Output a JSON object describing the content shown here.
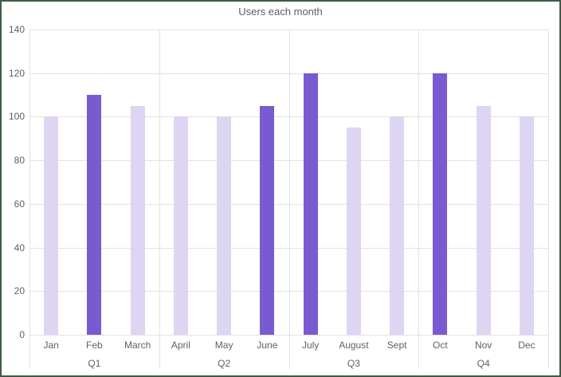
{
  "frame": {
    "border_color": "#3d5c45",
    "background": "#ffffff"
  },
  "chart_data": {
    "type": "bar",
    "title": "Users each month",
    "categories": [
      "Jan",
      "Feb",
      "March",
      "April",
      "May",
      "June",
      "July",
      "August",
      "Sept",
      "Oct",
      "Nov",
      "Dec"
    ],
    "values": [
      100,
      110,
      105,
      100,
      100,
      105,
      120,
      95,
      100,
      120,
      105,
      100
    ],
    "groups": [
      {
        "label": "Q1",
        "bars": [
          {
            "month": "Jan",
            "value": 100,
            "emphasis": false
          },
          {
            "month": "Feb",
            "value": 110,
            "emphasis": true
          },
          {
            "month": "March",
            "value": 105,
            "emphasis": false
          }
        ]
      },
      {
        "label": "Q2",
        "bars": [
          {
            "month": "April",
            "value": 100,
            "emphasis": false
          },
          {
            "month": "May",
            "value": 100,
            "emphasis": false
          },
          {
            "month": "June",
            "value": 105,
            "emphasis": true
          }
        ]
      },
      {
        "label": "Q3",
        "bars": [
          {
            "month": "July",
            "value": 120,
            "emphasis": true
          },
          {
            "month": "August",
            "value": 95,
            "emphasis": false
          },
          {
            "month": "Sept",
            "value": 100,
            "emphasis": false
          }
        ]
      },
      {
        "label": "Q4",
        "bars": [
          {
            "month": "Oct",
            "value": 120,
            "emphasis": true
          },
          {
            "month": "Nov",
            "value": 105,
            "emphasis": false
          },
          {
            "month": "Dec",
            "value": 100,
            "emphasis": false
          }
        ]
      }
    ],
    "ylim": [
      0,
      140
    ],
    "ytick_step": 20,
    "yticks": [
      0,
      20,
      40,
      60,
      80,
      100,
      120,
      140
    ],
    "xlabel": "",
    "ylabel": "",
    "grid": "horizontal",
    "legend": "none",
    "colors": {
      "bar_default": "#ddd5f2",
      "bar_emphasis": "#7a5ad0",
      "gridline": "#e2e2e2",
      "separator": "#e2e2e2",
      "axis_text": "#616161",
      "title_text": "#5e5e5e"
    }
  }
}
